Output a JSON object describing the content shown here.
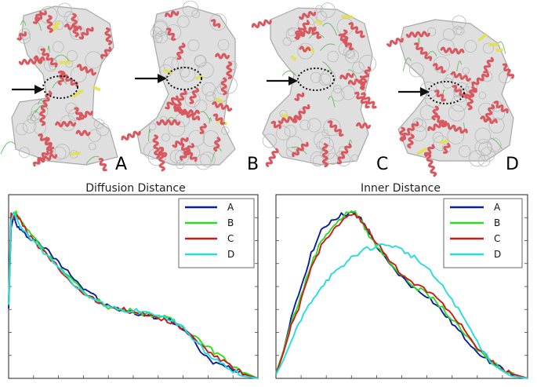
{
  "panels": [
    {
      "label": "A"
    },
    {
      "label": "B"
    },
    {
      "label": "C"
    },
    {
      "label": "D"
    }
  ],
  "colors": {
    "A": "#0a1f9e",
    "B": "#2ddc1e",
    "C": "#d01a1a",
    "D": "#22dede",
    "helix": "#d9585f",
    "sheet": "#e3e04a",
    "coil": "#6fbf6a",
    "surface": "#d4d4d4"
  },
  "chart_data": [
    {
      "type": "line",
      "title": "Diffusion Distance",
      "xlabel": "",
      "ylabel": "",
      "xlim": [
        0,
        1
      ],
      "ylim": [
        0,
        1
      ],
      "grid": false,
      "legend_position": "top-right",
      "series": [
        {
          "name": "A",
          "x": [
            0,
            0.01,
            0.02,
            0.03,
            0.05,
            0.08,
            0.12,
            0.16,
            0.2,
            0.25,
            0.3,
            0.33,
            0.37,
            0.42,
            0.47,
            0.52,
            0.57,
            0.62,
            0.67,
            0.72,
            0.77,
            0.82,
            0.87,
            0.92,
            0.96,
            1.0
          ],
          "y": [
            0.38,
            0.82,
            0.88,
            0.84,
            0.8,
            0.77,
            0.74,
            0.69,
            0.63,
            0.57,
            0.49,
            0.47,
            0.41,
            0.38,
            0.37,
            0.35,
            0.34,
            0.33,
            0.3,
            0.24,
            0.15,
            0.08,
            0.07,
            0.04,
            0.02,
            0.0
          ]
        },
        {
          "name": "B",
          "x": [
            0,
            0.01,
            0.02,
            0.03,
            0.05,
            0.08,
            0.12,
            0.16,
            0.2,
            0.25,
            0.3,
            0.35,
            0.4,
            0.45,
            0.5,
            0.55,
            0.6,
            0.65,
            0.7,
            0.75,
            0.8,
            0.85,
            0.9,
            0.95,
            1.0
          ],
          "y": [
            0.4,
            0.88,
            0.9,
            0.9,
            0.86,
            0.8,
            0.74,
            0.67,
            0.61,
            0.54,
            0.47,
            0.43,
            0.39,
            0.37,
            0.37,
            0.35,
            0.34,
            0.32,
            0.28,
            0.23,
            0.17,
            0.12,
            0.07,
            0.03,
            0.0
          ]
        },
        {
          "name": "C",
          "x": [
            0,
            0.01,
            0.02,
            0.03,
            0.05,
            0.08,
            0.12,
            0.16,
            0.2,
            0.25,
            0.3,
            0.35,
            0.4,
            0.45,
            0.5,
            0.55,
            0.6,
            0.65,
            0.7,
            0.75,
            0.8,
            0.85,
            0.9,
            0.95,
            1.0
          ],
          "y": [
            0.42,
            0.9,
            0.88,
            0.89,
            0.85,
            0.78,
            0.72,
            0.66,
            0.6,
            0.52,
            0.47,
            0.42,
            0.4,
            0.38,
            0.36,
            0.35,
            0.33,
            0.31,
            0.27,
            0.21,
            0.15,
            0.1,
            0.06,
            0.02,
            0.0
          ]
        },
        {
          "name": "D",
          "x": [
            0,
            0.01,
            0.02,
            0.03,
            0.05,
            0.08,
            0.12,
            0.16,
            0.2,
            0.25,
            0.3,
            0.35,
            0.4,
            0.45,
            0.5,
            0.55,
            0.6,
            0.65,
            0.7,
            0.75,
            0.8,
            0.85,
            0.9,
            0.95,
            1.0
          ],
          "y": [
            0.4,
            0.86,
            0.9,
            0.87,
            0.83,
            0.77,
            0.72,
            0.66,
            0.6,
            0.53,
            0.47,
            0.43,
            0.39,
            0.37,
            0.37,
            0.36,
            0.34,
            0.32,
            0.28,
            0.2,
            0.13,
            0.08,
            0.04,
            0.01,
            0.0
          ]
        }
      ]
    },
    {
      "type": "line",
      "title": "Inner Distance",
      "xlabel": "",
      "ylabel": "",
      "xlim": [
        0,
        1
      ],
      "ylim": [
        0,
        1
      ],
      "grid": false,
      "legend_position": "top-right",
      "series": [
        {
          "name": "A",
          "x": [
            0,
            0.03,
            0.06,
            0.1,
            0.14,
            0.18,
            0.22,
            0.26,
            0.3,
            0.33,
            0.36,
            0.4,
            0.45,
            0.5,
            0.55,
            0.6,
            0.65,
            0.7,
            0.75,
            0.8,
            0.85,
            0.9,
            0.95,
            1.0
          ],
          "y": [
            0.02,
            0.15,
            0.32,
            0.5,
            0.68,
            0.8,
            0.86,
            0.89,
            0.9,
            0.88,
            0.82,
            0.72,
            0.62,
            0.55,
            0.49,
            0.45,
            0.38,
            0.3,
            0.22,
            0.15,
            0.09,
            0.05,
            0.02,
            0.0
          ]
        },
        {
          "name": "B",
          "x": [
            0,
            0.03,
            0.06,
            0.1,
            0.14,
            0.18,
            0.22,
            0.26,
            0.3,
            0.33,
            0.36,
            0.4,
            0.45,
            0.5,
            0.55,
            0.6,
            0.65,
            0.7,
            0.75,
            0.8,
            0.85,
            0.9,
            0.95,
            1.0
          ],
          "y": [
            0.03,
            0.15,
            0.3,
            0.45,
            0.62,
            0.75,
            0.82,
            0.87,
            0.92,
            0.88,
            0.8,
            0.72,
            0.64,
            0.56,
            0.5,
            0.46,
            0.4,
            0.32,
            0.24,
            0.16,
            0.1,
            0.05,
            0.02,
            0.0
          ]
        },
        {
          "name": "C",
          "x": [
            0,
            0.03,
            0.06,
            0.1,
            0.14,
            0.18,
            0.22,
            0.26,
            0.3,
            0.33,
            0.36,
            0.4,
            0.45,
            0.5,
            0.55,
            0.6,
            0.65,
            0.7,
            0.75,
            0.8,
            0.85,
            0.9,
            0.95,
            1.0
          ],
          "y": [
            0.02,
            0.14,
            0.28,
            0.42,
            0.6,
            0.72,
            0.8,
            0.85,
            0.89,
            0.87,
            0.82,
            0.74,
            0.64,
            0.57,
            0.52,
            0.48,
            0.43,
            0.35,
            0.26,
            0.17,
            0.1,
            0.05,
            0.02,
            0.0
          ]
        },
        {
          "name": "D",
          "x": [
            0,
            0.03,
            0.06,
            0.1,
            0.14,
            0.18,
            0.22,
            0.26,
            0.3,
            0.35,
            0.4,
            0.45,
            0.5,
            0.55,
            0.6,
            0.65,
            0.7,
            0.75,
            0.8,
            0.85,
            0.9,
            0.95,
            1.0
          ],
          "y": [
            0.02,
            0.1,
            0.2,
            0.32,
            0.42,
            0.5,
            0.56,
            0.6,
            0.66,
            0.7,
            0.72,
            0.73,
            0.7,
            0.66,
            0.6,
            0.52,
            0.43,
            0.32,
            0.2,
            0.1,
            0.04,
            0.01,
            0.0
          ]
        }
      ]
    }
  ]
}
